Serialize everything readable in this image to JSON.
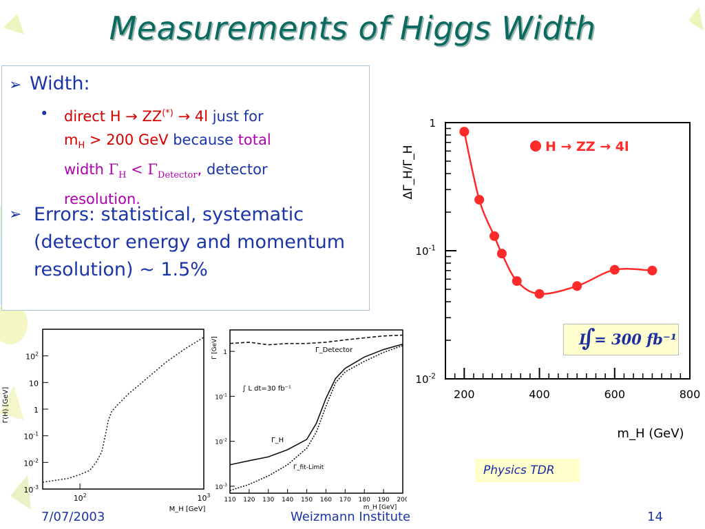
{
  "slide": {
    "title": "Measurements of Higgs Width",
    "footer_date": "7/07/2003",
    "footer_center": "Weizmann Institute",
    "page_number": "14",
    "source_note": "Physics TDR"
  },
  "bullets": {
    "b1": "Width:",
    "b1_sub": {
      "p1": "direct H → ZZ",
      "p2": "(*)",
      "p3": " → 4l",
      "p4": " just for",
      "p5": "m",
      "p6": "H",
      "p7": " > 200 GeV",
      "p8": " because ",
      "p9": "total",
      "p10": "width ",
      "p11": "Γ",
      "p12": "H",
      "p13": " < Γ",
      "p14": "Detector",
      "p15": ",",
      "p16": " detector",
      "p17": "resolution."
    },
    "b2": "Errors: statistical, systematic (detector energy and momentum resolution) ~ 1.5%"
  },
  "colors": {
    "title": "#0b6a5f",
    "blue": "#1b35a8",
    "red": "#d40000",
    "magenta": "#b000b0",
    "marker": "#ff2a2a"
  },
  "chart_data": [
    {
      "type": "line",
      "xlabel": "M_H [GeV]",
      "ylabel": "Γ(H) [GeV]",
      "xscale": "log",
      "yscale": "log",
      "xlim": [
        50,
        1000
      ],
      "ylim": [
        0.001,
        1000
      ],
      "xticks": [
        "10^2",
        "10^3"
      ],
      "yticks": [
        "10^-3",
        "10^-2",
        "10^-1",
        "1",
        "10",
        "10^2"
      ],
      "series": [
        {
          "values_x": [
            50,
            80,
            100,
            120,
            135,
            150,
            160,
            170,
            180,
            200,
            250,
            300,
            400,
            500,
            700,
            1000
          ],
          "values_y": [
            0.0018,
            0.0025,
            0.0035,
            0.005,
            0.01,
            0.025,
            0.1,
            0.4,
            0.8,
            1.4,
            4,
            8,
            25,
            60,
            180,
            500
          ],
          "style": "dotted"
        }
      ]
    },
    {
      "type": "line",
      "xlabel": "m_H [GeV]",
      "ylabel": "Γ [GeV]",
      "yscale": "log",
      "xlim": [
        110,
        200
      ],
      "ylim": [
        0.0007,
        3
      ],
      "xticks": [
        "110",
        "120",
        "130",
        "140",
        "150",
        "160",
        "170",
        "180",
        "190",
        "200"
      ],
      "yticks": [
        "10^-3",
        "10^-2",
        "10^-1",
        "1"
      ],
      "annotations": [
        "∫ L dt=30 fb⁻¹"
      ],
      "series": [
        {
          "name": "Γ_Detector",
          "style": "dashed",
          "x": [
            110,
            120,
            130,
            140,
            150,
            160,
            170,
            180,
            190,
            200
          ],
          "y": [
            1.5,
            1.6,
            1.4,
            1.5,
            1.5,
            1.6,
            1.8,
            2.0,
            2.2,
            2.3
          ]
        },
        {
          "name": "Γ_H",
          "style": "solid",
          "x": [
            110,
            120,
            130,
            140,
            150,
            155,
            160,
            165,
            170,
            180,
            190,
            200
          ],
          "y": [
            0.003,
            0.0037,
            0.0045,
            0.0065,
            0.011,
            0.025,
            0.09,
            0.25,
            0.42,
            0.75,
            1.1,
            1.45
          ]
        },
        {
          "name": "Γ_fit-Limit",
          "style": "dotted",
          "x": [
            110,
            120,
            130,
            140,
            150,
            155,
            160,
            165,
            170,
            180,
            190,
            200
          ],
          "y": [
            0.0008,
            0.0011,
            0.0017,
            0.003,
            0.007,
            0.016,
            0.06,
            0.2,
            0.35,
            0.6,
            0.95,
            1.35
          ]
        }
      ]
    },
    {
      "type": "line",
      "xlabel": "m_H (GeV)",
      "ylabel": "ΔΓ_H/Γ_H",
      "yscale": "log",
      "xlim": [
        150,
        800
      ],
      "ylim": [
        0.01,
        1
      ],
      "xticks": [
        "200",
        "400",
        "600",
        "800"
      ],
      "yticks": [
        "10^-2",
        "10^-1",
        "1"
      ],
      "legend": "top-right",
      "integrated_luminosity": "∫ L = 300 fb⁻¹",
      "series": [
        {
          "name": "H → ZZ → 4l",
          "x": [
            200,
            240,
            280,
            300,
            340,
            400,
            500,
            600,
            700
          ],
          "y": [
            0.85,
            0.25,
            0.13,
            0.095,
            0.058,
            0.046,
            0.053,
            0.071,
            0.07
          ]
        }
      ]
    }
  ]
}
